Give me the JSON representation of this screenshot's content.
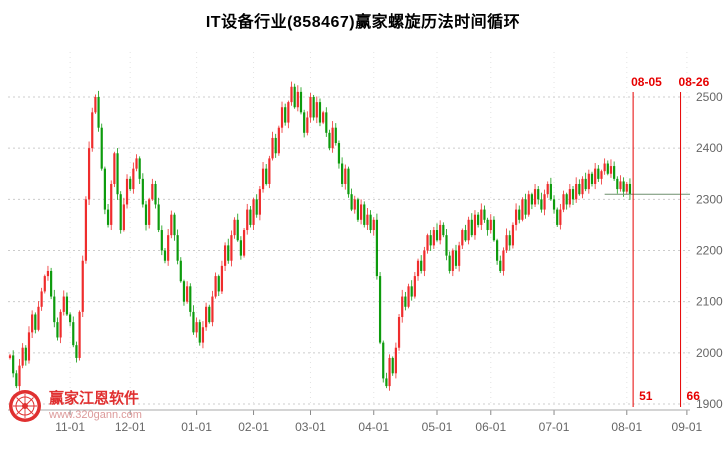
{
  "title": "IT设备行业(858467)赢家螺旋历法时间循环",
  "watermark": {
    "brand": "赢家江恩软件",
    "url": "www.320gann.com",
    "logo": "gann-wheel-logo"
  },
  "colors": {
    "up": "#ef2d2d",
    "down": "#0d9b0d",
    "timeline": "#e60000",
    "grid": "#cccccc",
    "vgrid": "#e3e3e3",
    "axis_line": "#aaaaaa",
    "axis_text": "#666666",
    "last_price_line": "#6f8f6f",
    "title_color": "#000000",
    "brand_red": "#e03030"
  },
  "chart_data": {
    "type": "candlestick",
    "title": "IT设备行业(858467)赢家螺旋历法时间循环",
    "ylabel": "",
    "xlabel": "",
    "y_axis": {
      "min": 1900,
      "max": 2500,
      "step": 100,
      "ticks": [
        2500,
        2400,
        2300,
        2200,
        2100,
        2000,
        1900
      ]
    },
    "x_axis": {
      "months": [
        {
          "label": "11-01",
          "index": 19
        },
        {
          "label": "12-01",
          "index": 38
        },
        {
          "label": "01-01",
          "index": 59
        },
        {
          "label": "02-01",
          "index": 77
        },
        {
          "label": "03-01",
          "index": 95
        },
        {
          "label": "04-01",
          "index": 115
        },
        {
          "label": "05-01",
          "index": 135
        },
        {
          "label": "06-01",
          "index": 152
        },
        {
          "label": "07-01",
          "index": 172
        },
        {
          "label": "08-01",
          "index": 195
        },
        {
          "label": "09-01",
          "index": 214
        }
      ]
    },
    "open_first": 1990,
    "closes": [
      1995,
      1960,
      1935,
      1975,
      2010,
      1985,
      2040,
      2075,
      2045,
      2090,
      2120,
      2150,
      2160,
      2110,
      2060,
      2030,
      2080,
      2110,
      2075,
      2060,
      2015,
      1990,
      2080,
      2180,
      2300,
      2400,
      2470,
      2500,
      2440,
      2360,
      2280,
      2250,
      2330,
      2390,
      2310,
      2240,
      2290,
      2340,
      2320,
      2360,
      2380,
      2340,
      2290,
      2250,
      2300,
      2330,
      2290,
      2240,
      2200,
      2180,
      2230,
      2270,
      2230,
      2180,
      2140,
      2100,
      2130,
      2080,
      2040,
      2060,
      2020,
      2050,
      2090,
      2060,
      2110,
      2150,
      2120,
      2170,
      2210,
      2180,
      2230,
      2260,
      2220,
      2190,
      2240,
      2280,
      2250,
      2300,
      2270,
      2320,
      2360,
      2330,
      2380,
      2420,
      2390,
      2440,
      2480,
      2450,
      2490,
      2520,
      2480,
      2510,
      2470,
      2430,
      2460,
      2500,
      2460,
      2490,
      2450,
      2470,
      2430,
      2400,
      2440,
      2410,
      2370,
      2330,
      2360,
      2310,
      2280,
      2300,
      2260,
      2290,
      2250,
      2270,
      2240,
      2260,
      2150,
      2020,
      1950,
      1935,
      1990,
      1960,
      2010,
      2070,
      2110,
      2090,
      2130,
      2110,
      2150,
      2180,
      2160,
      2200,
      2230,
      2210,
      2240,
      2220,
      2250,
      2230,
      2190,
      2160,
      2200,
      2170,
      2210,
      2240,
      2220,
      2260,
      2230,
      2270,
      2250,
      2280,
      2260,
      2240,
      2260,
      2220,
      2180,
      2160,
      2200,
      2230,
      2210,
      2250,
      2280,
      2260,
      2300,
      2270,
      2310,
      2290,
      2320,
      2300,
      2280,
      2310,
      2330,
      2300,
      2280,
      2250,
      2280,
      2310,
      2290,
      2320,
      2300,
      2330,
      2310,
      2340,
      2320,
      2350,
      2330,
      2360,
      2340,
      2355,
      2370,
      2350,
      2365,
      2340,
      2320,
      2335,
      2315,
      2330,
      2310
    ],
    "last_close": 2310,
    "time_lines": [
      {
        "date": "08-05",
        "count": "51",
        "index": 197
      },
      {
        "date": "08-26",
        "count": "66",
        "index": 212
      }
    ]
  }
}
